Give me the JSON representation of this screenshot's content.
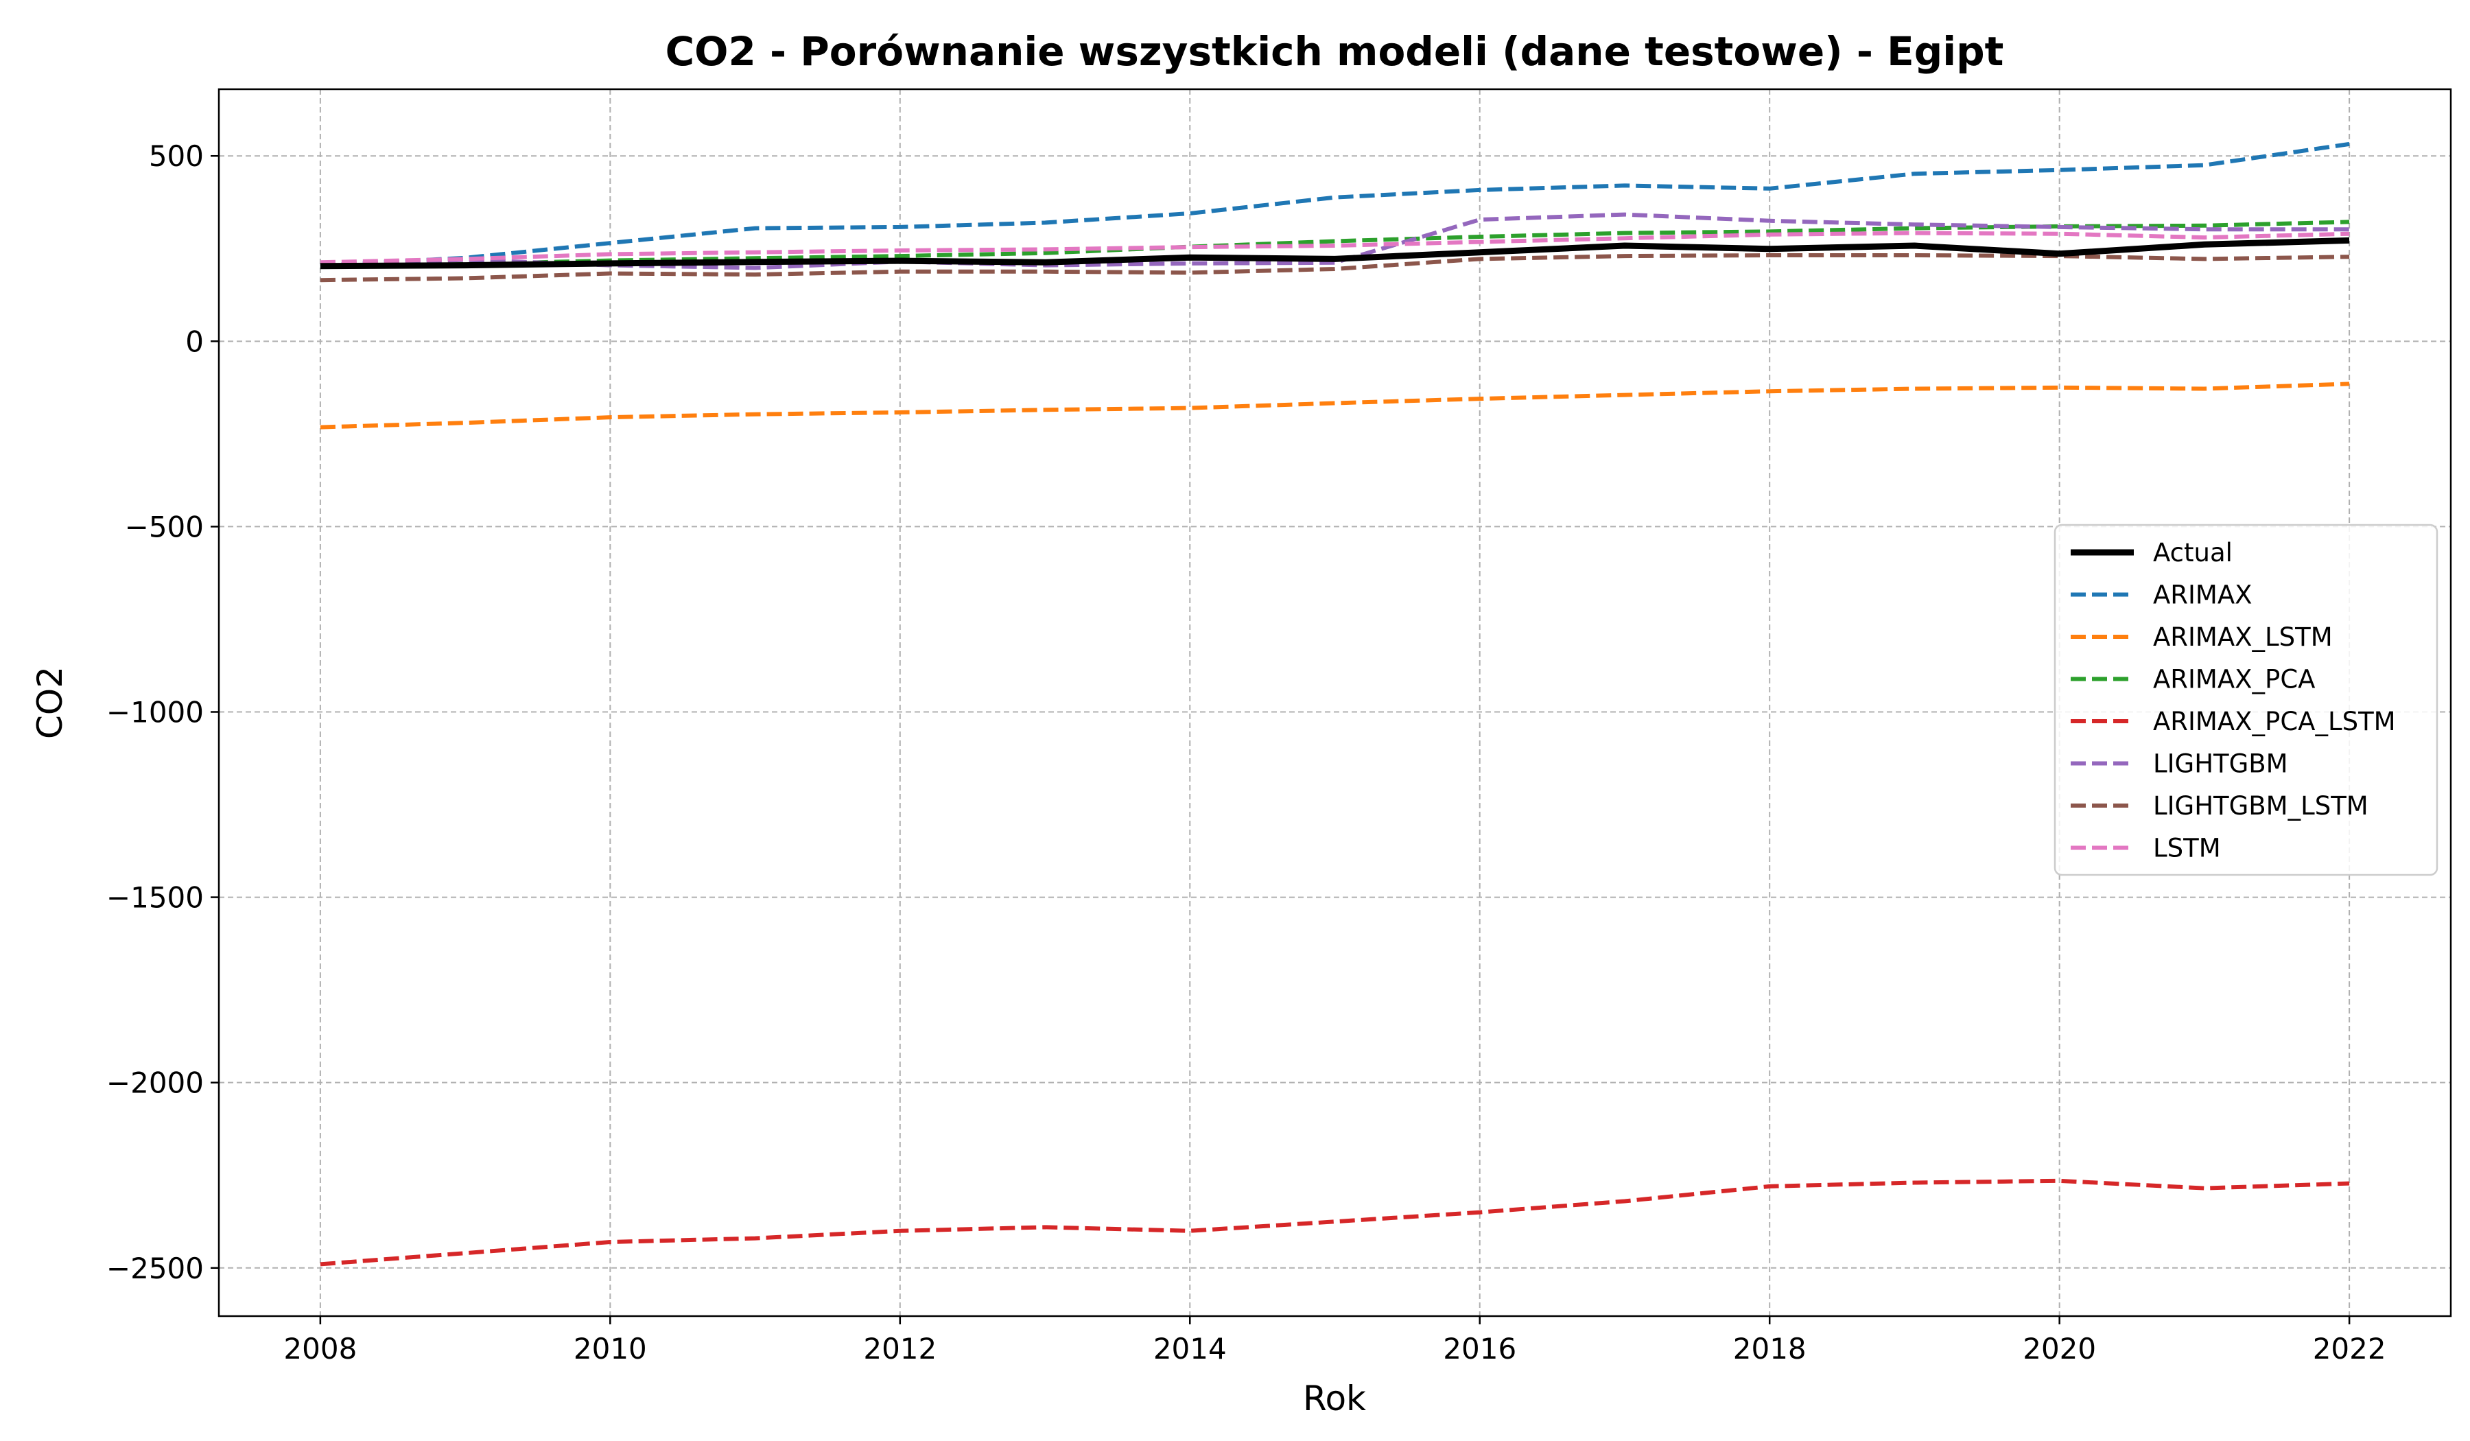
{
  "chart_data": {
    "type": "line",
    "title": "CO2 - Porównanie wszystkich modeli (dane testowe) - Egipt",
    "xlabel": "Rok",
    "ylabel": "CO2",
    "xlim": [
      2007.3,
      2022.7
    ],
    "ylim": [
      -2630,
      680
    ],
    "x_ticks": [
      2008,
      2010,
      2012,
      2014,
      2016,
      2018,
      2020,
      2022
    ],
    "y_ticks": [
      500,
      0,
      -500,
      -1000,
      -1500,
      -2000,
      -2500
    ],
    "y_tick_labels": [
      "500",
      "0",
      "−500",
      "−1000",
      "−1500",
      "−2000",
      "−2500"
    ],
    "grid": true,
    "legend_position": "center-right",
    "x": [
      2008,
      2009,
      2010,
      2011,
      2012,
      2013,
      2014,
      2015,
      2016,
      2017,
      2018,
      2019,
      2020,
      2021,
      2022
    ],
    "series": [
      {
        "name": "Actual",
        "color": "#000000",
        "style": "solid",
        "values": [
          203,
          205,
          210,
          214,
          217,
          213,
          226,
          222,
          240,
          258,
          249,
          258,
          236,
          261,
          272
        ]
      },
      {
        "name": "ARIMAX",
        "color": "#1f77b4",
        "style": "dashed",
        "values": [
          205,
          225,
          265,
          305,
          308,
          320,
          345,
          388,
          408,
          420,
          412,
          452,
          462,
          475,
          532
        ]
      },
      {
        "name": "ARIMAX_LSTM",
        "color": "#ff7f0e",
        "style": "dashed",
        "values": [
          -232,
          -220,
          -205,
          -197,
          -192,
          -185,
          -180,
          -167,
          -155,
          -145,
          -135,
          -128,
          -125,
          -128,
          -115
        ]
      },
      {
        "name": "ARIMAX_PCA",
        "color": "#2ca02c",
        "style": "dashed",
        "values": [
          202,
          208,
          218,
          224,
          230,
          238,
          255,
          270,
          282,
          292,
          296,
          305,
          310,
          312,
          322
        ]
      },
      {
        "name": "ARIMAX_PCA_LSTM",
        "color": "#d62728",
        "style": "dashed",
        "values": [
          -2490,
          -2460,
          -2430,
          -2420,
          -2400,
          -2390,
          -2400,
          -2375,
          -2350,
          -2320,
          -2280,
          -2270,
          -2265,
          -2285,
          -2272
        ]
      },
      {
        "name": "LIGHTGBM",
        "color": "#9467bd",
        "style": "dashed",
        "values": [
          205,
          220,
          205,
          198,
          215,
          205,
          210,
          212,
          328,
          342,
          325,
          315,
          308,
          302,
          302
        ]
      },
      {
        "name": "LIGHTGBM_LSTM",
        "color": "#8c564b",
        "style": "dashed",
        "values": [
          165,
          170,
          183,
          180,
          188,
          188,
          185,
          195,
          222,
          230,
          232,
          232,
          230,
          222,
          228
        ]
      },
      {
        "name": "LSTM",
        "color": "#e377c2",
        "style": "dashed",
        "values": [
          213,
          222,
          235,
          240,
          245,
          248,
          254,
          258,
          268,
          278,
          288,
          292,
          290,
          280,
          290
        ]
      }
    ]
  }
}
